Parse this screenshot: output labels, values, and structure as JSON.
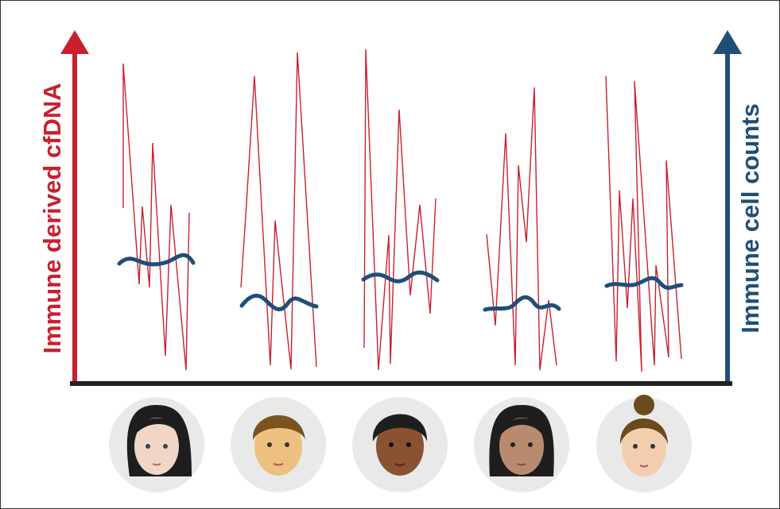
{
  "left_axis_label": "Immune derived cfDNA",
  "right_axis_label": "Immune cell counts"
}
